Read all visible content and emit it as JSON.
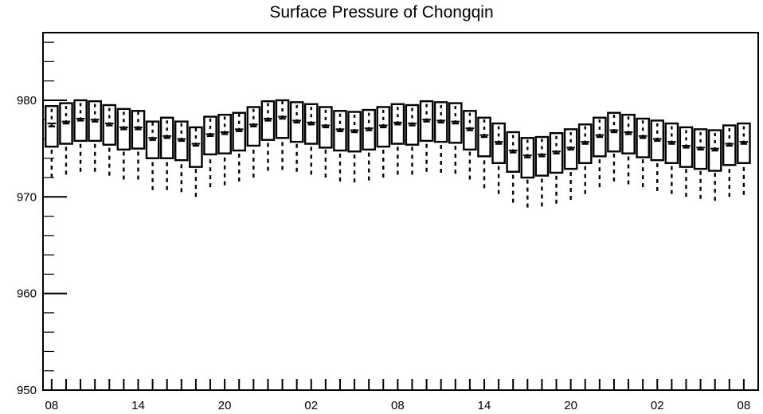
{
  "chart_data": {
    "type": "box",
    "title": "Surface Pressure of Chongqin",
    "xlabel": "",
    "ylabel": "",
    "ylim": [
      950,
      987
    ],
    "y_ticks": [
      950,
      960,
      970,
      980
    ],
    "x_tick_labels": [
      "08",
      "14",
      "20",
      "02",
      "08",
      "14",
      "20",
      "02",
      "08"
    ],
    "x_tick_positions": [
      0,
      6,
      12,
      18,
      24,
      30,
      36,
      42,
      48
    ],
    "x_range": [
      -0.6,
      49
    ],
    "grid": false,
    "series": [
      {
        "boxes": [
          {
            "x": 0,
            "min": 972.0,
            "q1": 975.2,
            "median": 977.3,
            "mean": 977.6,
            "q3": 979.4
          },
          {
            "x": 1,
            "min": 972.3,
            "q1": 975.5,
            "median": 977.6,
            "mean": 977.8,
            "q3": 979.7
          },
          {
            "x": 2,
            "min": 972.6,
            "q1": 975.8,
            "median": 977.9,
            "mean": 978.1,
            "q3": 980.0
          },
          {
            "x": 3,
            "min": 972.6,
            "q1": 975.8,
            "median": 977.8,
            "mean": 978.0,
            "q3": 979.9
          },
          {
            "x": 4,
            "min": 972.2,
            "q1": 975.4,
            "median": 977.4,
            "mean": 977.6,
            "q3": 979.5
          },
          {
            "x": 5,
            "min": 971.8,
            "q1": 974.9,
            "median": 977.0,
            "mean": 977.2,
            "q3": 979.1
          },
          {
            "x": 6,
            "min": 971.8,
            "q1": 975.0,
            "median": 977.0,
            "mean": 977.2,
            "q3": 978.9
          },
          {
            "x": 7,
            "min": 970.7,
            "q1": 974.0,
            "median": 975.9,
            "mean": 976.1,
            "q3": 977.8
          },
          {
            "x": 8,
            "min": 970.7,
            "q1": 974.0,
            "median": 976.1,
            "mean": 976.3,
            "q3": 978.2
          },
          {
            "x": 9,
            "min": 970.5,
            "q1": 973.8,
            "median": 975.8,
            "mean": 976.0,
            "q3": 977.8
          },
          {
            "x": 10,
            "min": 970.0,
            "q1": 973.1,
            "median": 975.3,
            "mean": 975.5,
            "q3": 977.2
          },
          {
            "x": 11,
            "min": 971.0,
            "q1": 974.4,
            "median": 976.3,
            "mean": 976.5,
            "q3": 978.3
          },
          {
            "x": 12,
            "min": 971.2,
            "q1": 974.5,
            "median": 976.5,
            "mean": 976.7,
            "q3": 978.5
          },
          {
            "x": 13,
            "min": 971.6,
            "q1": 974.8,
            "median": 976.8,
            "mean": 977.0,
            "q3": 978.7
          },
          {
            "x": 14,
            "min": 972.0,
            "q1": 975.3,
            "median": 977.3,
            "mean": 977.5,
            "q3": 979.3
          },
          {
            "x": 15,
            "min": 972.7,
            "q1": 975.9,
            "median": 977.9,
            "mean": 978.1,
            "q3": 979.9
          },
          {
            "x": 16,
            "min": 972.8,
            "q1": 976.1,
            "median": 978.1,
            "mean": 978.3,
            "q3": 980.0
          },
          {
            "x": 17,
            "min": 972.6,
            "q1": 975.7,
            "median": 977.7,
            "mean": 977.9,
            "q3": 979.8
          },
          {
            "x": 18,
            "min": 972.3,
            "q1": 975.5,
            "median": 977.5,
            "mean": 977.7,
            "q3": 979.6
          },
          {
            "x": 19,
            "min": 972.0,
            "q1": 975.1,
            "median": 977.2,
            "mean": 977.4,
            "q3": 979.3
          },
          {
            "x": 20,
            "min": 971.6,
            "q1": 974.8,
            "median": 976.8,
            "mean": 977.0,
            "q3": 978.9
          },
          {
            "x": 21,
            "min": 971.5,
            "q1": 974.7,
            "median": 976.7,
            "mean": 976.9,
            "q3": 978.8
          },
          {
            "x": 22,
            "min": 971.7,
            "q1": 974.9,
            "median": 976.9,
            "mean": 977.1,
            "q3": 979.0
          },
          {
            "x": 23,
            "min": 972.0,
            "q1": 975.2,
            "median": 977.2,
            "mean": 977.4,
            "q3": 979.3
          },
          {
            "x": 24,
            "min": 972.3,
            "q1": 975.5,
            "median": 977.5,
            "mean": 977.7,
            "q3": 979.6
          },
          {
            "x": 25,
            "min": 972.3,
            "q1": 975.4,
            "median": 977.4,
            "mean": 977.6,
            "q3": 979.5
          },
          {
            "x": 26,
            "min": 972.6,
            "q1": 975.8,
            "median": 977.8,
            "mean": 978.0,
            "q3": 979.9
          },
          {
            "x": 27,
            "min": 972.5,
            "q1": 975.7,
            "median": 977.7,
            "mean": 977.9,
            "q3": 979.8
          },
          {
            "x": 28,
            "min": 972.4,
            "q1": 975.6,
            "median": 977.6,
            "mean": 977.8,
            "q3": 979.7
          },
          {
            "x": 29,
            "min": 971.8,
            "q1": 974.9,
            "median": 976.9,
            "mean": 977.1,
            "q3": 978.9
          },
          {
            "x": 30,
            "min": 970.9,
            "q1": 974.2,
            "median": 976.2,
            "mean": 976.4,
            "q3": 978.2
          },
          {
            "x": 31,
            "min": 970.3,
            "q1": 973.5,
            "median": 975.5,
            "mean": 975.7,
            "q3": 977.6
          },
          {
            "x": 32,
            "min": 969.4,
            "q1": 972.6,
            "median": 974.6,
            "mean": 974.8,
            "q3": 976.7
          },
          {
            "x": 33,
            "min": 968.9,
            "q1": 972.0,
            "median": 974.1,
            "mean": 974.3,
            "q3": 976.1
          },
          {
            "x": 34,
            "min": 969.0,
            "q1": 972.2,
            "median": 974.2,
            "mean": 974.4,
            "q3": 976.2
          },
          {
            "x": 35,
            "min": 969.3,
            "q1": 972.5,
            "median": 974.5,
            "mean": 974.7,
            "q3": 976.6
          },
          {
            "x": 36,
            "min": 969.7,
            "q1": 972.9,
            "median": 974.9,
            "mean": 975.1,
            "q3": 977.0
          },
          {
            "x": 37,
            "min": 970.3,
            "q1": 973.5,
            "median": 975.5,
            "mean": 975.7,
            "q3": 977.5
          },
          {
            "x": 38,
            "min": 971.0,
            "q1": 974.2,
            "median": 976.2,
            "mean": 976.4,
            "q3": 978.2
          },
          {
            "x": 39,
            "min": 971.6,
            "q1": 974.7,
            "median": 976.7,
            "mean": 976.9,
            "q3": 978.7
          },
          {
            "x": 40,
            "min": 971.3,
            "q1": 974.5,
            "median": 976.5,
            "mean": 976.7,
            "q3": 978.5
          },
          {
            "x": 41,
            "min": 971.0,
            "q1": 974.1,
            "median": 976.1,
            "mean": 976.3,
            "q3": 978.1
          },
          {
            "x": 42,
            "min": 970.6,
            "q1": 973.8,
            "median": 975.8,
            "mean": 976.0,
            "q3": 977.9
          },
          {
            "x": 43,
            "min": 970.3,
            "q1": 973.5,
            "median": 975.5,
            "mean": 975.7,
            "q3": 977.6
          },
          {
            "x": 44,
            "min": 970.0,
            "q1": 973.1,
            "median": 975.1,
            "mean": 975.3,
            "q3": 977.2
          },
          {
            "x": 45,
            "min": 969.8,
            "q1": 972.9,
            "median": 974.9,
            "mean": 975.1,
            "q3": 977.0
          },
          {
            "x": 46,
            "min": 969.6,
            "q1": 972.7,
            "median": 974.8,
            "mean": 975.0,
            "q3": 976.9
          },
          {
            "x": 47,
            "min": 970.0,
            "q1": 973.3,
            "median": 975.3,
            "mean": 975.5,
            "q3": 977.4
          },
          {
            "x": 48,
            "min": 970.2,
            "q1": 973.5,
            "median": 975.5,
            "mean": 975.7,
            "q3": 977.6
          }
        ]
      }
    ]
  },
  "colors": {
    "axis": "#000000",
    "box_stroke": "#000000",
    "background": "#ffffff"
  }
}
